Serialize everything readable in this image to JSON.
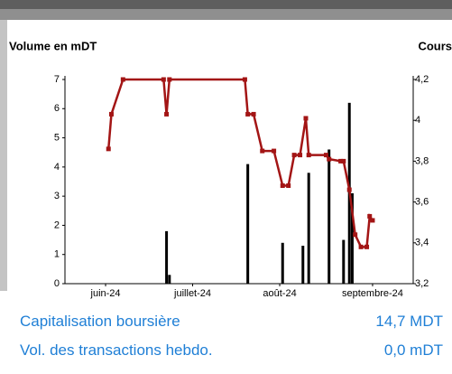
{
  "chart_data": {
    "type": "combo",
    "y_title": "Volume en mDT",
    "y2_title": "Cours",
    "xlim": [
      0,
      120
    ],
    "xticks": [
      {
        "value": 14,
        "label": "juin-24"
      },
      {
        "value": 44,
        "label": "juillet-24"
      },
      {
        "value": 74,
        "label": "août-24"
      },
      {
        "value": 106,
        "label": "septembre-24"
      }
    ],
    "ylim": [
      0,
      7
    ],
    "yticks": [
      0,
      1,
      2,
      3,
      4,
      5,
      6,
      7
    ],
    "y2lim": [
      3.2,
      4.2
    ],
    "y2ticks": [
      {
        "value": 3.2,
        "label": "3,2"
      },
      {
        "value": 3.4,
        "label": "3,4"
      },
      {
        "value": 3.6,
        "label": "3,6"
      },
      {
        "value": 3.8,
        "label": "3,8"
      },
      {
        "value": 4,
        "label": "4"
      },
      {
        "value": 4.2,
        "label": "4,2"
      }
    ],
    "series": [
      {
        "type": "bar",
        "color": "#000000",
        "x": [
          35,
          36,
          63,
          75,
          82,
          84,
          91,
          96,
          98,
          99
        ],
        "values": [
          1.8,
          0.3,
          4.1,
          1.4,
          1.3,
          3.8,
          4.6,
          1.5,
          6.2,
          3.1
        ]
      },
      {
        "type": "line",
        "axis": "y2",
        "color": "#a31515",
        "x": [
          15,
          16,
          20,
          34,
          35,
          36,
          62,
          63,
          65,
          68,
          72,
          75,
          77,
          79,
          81,
          83,
          84,
          90,
          91,
          95,
          96,
          98,
          100,
          102,
          104,
          105,
          106
        ],
        "values": [
          3.86,
          4.03,
          4.2,
          4.2,
          4.03,
          4.2,
          4.2,
          4.03,
          4.03,
          3.85,
          3.85,
          3.68,
          3.68,
          3.83,
          3.83,
          4.01,
          3.83,
          3.83,
          3.81,
          3.8,
          3.8,
          3.66,
          3.44,
          3.38,
          3.38,
          3.53,
          3.51
        ]
      }
    ]
  },
  "stats": [
    {
      "label": "Capitalisation boursière",
      "value": "14,7 MDT"
    },
    {
      "label": "Vol. des transactions hebdo.",
      "value": "0,0 mDT"
    }
  ]
}
